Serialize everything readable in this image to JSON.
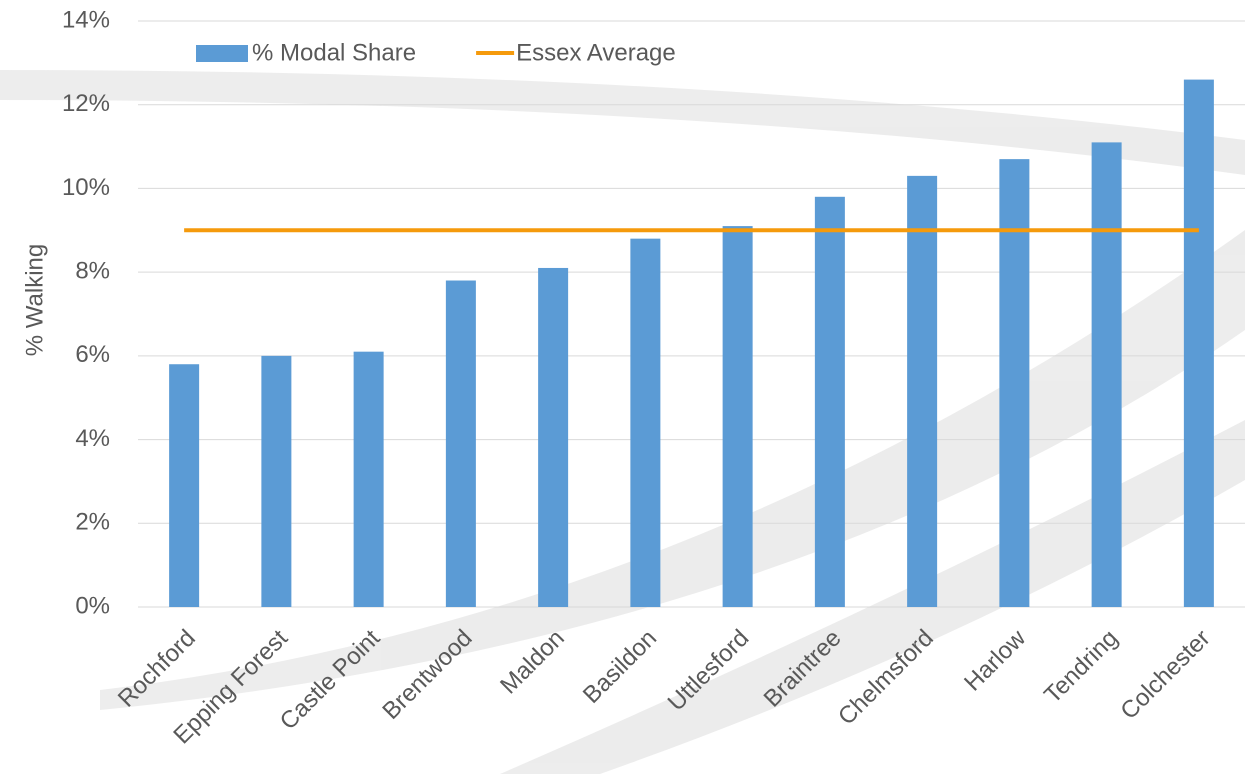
{
  "chart_data": {
    "type": "bar",
    "ylabel": "% Walking",
    "categories": [
      "Rochford",
      "Epping Forest",
      "Castle Point",
      "Brentwood",
      "Maldon",
      "Basildon",
      "Uttlesford",
      "Braintree",
      "Chelmsford",
      "Harlow",
      "Tendring",
      "Colchester"
    ],
    "series": [
      {
        "name": "% Modal Share",
        "color": "#5b9bd5",
        "values": [
          5.8,
          6.0,
          6.1,
          7.8,
          8.1,
          8.8,
          9.1,
          9.8,
          10.3,
          10.7,
          11.1,
          12.6
        ]
      },
      {
        "name": "Essex Average",
        "type": "line",
        "color": "#f59a0c",
        "values": [
          9.0,
          9.0,
          9.0,
          9.0,
          9.0,
          9.0,
          9.0,
          9.0,
          9.0,
          9.0,
          9.0,
          9.0
        ]
      }
    ],
    "ylim": [
      0,
      14
    ],
    "yticks": [
      {
        "value": 0,
        "label": "0%"
      },
      {
        "value": 2,
        "label": "2%"
      },
      {
        "value": 4,
        "label": "4%"
      },
      {
        "value": 6,
        "label": "6%"
      },
      {
        "value": 8,
        "label": "8%"
      },
      {
        "value": 10,
        "label": "10%"
      },
      {
        "value": 12,
        "label": "12%"
      },
      {
        "value": 14,
        "label": "14%"
      }
    ],
    "grid": true,
    "legend": "top"
  }
}
